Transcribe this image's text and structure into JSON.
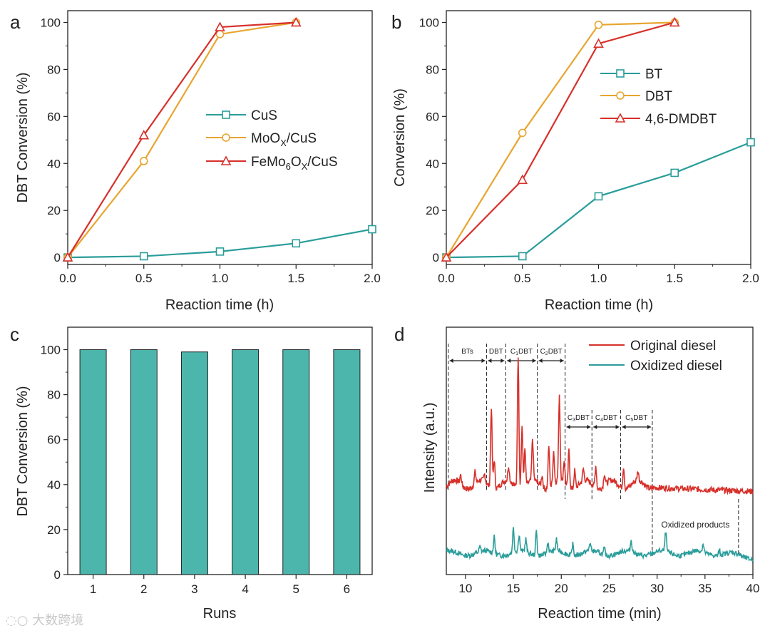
{
  "watermark": "大数跨境",
  "chart_data": [
    {
      "panel": "a",
      "type": "line",
      "title": "",
      "xlabel": "Reaction time (h)",
      "ylabel": "DBT Conversion (%)",
      "xlim": [
        0,
        2.0
      ],
      "ylim": [
        -3,
        105
      ],
      "xticks": [
        0.0,
        0.5,
        1.0,
        1.5,
        2.0
      ],
      "xtick_labels": [
        "0.0",
        "0.5",
        "1.0",
        "1.5",
        "2.0"
      ],
      "yticks": [
        0,
        20,
        40,
        60,
        80,
        100
      ],
      "ytick_labels": [
        "0",
        "20",
        "40",
        "60",
        "80",
        "100"
      ],
      "legend_position": "center-right",
      "series": [
        {
          "name": "CuS",
          "marker": "square",
          "color": "#2a9d9a",
          "x": [
            0,
            0.5,
            1.0,
            1.5,
            2.0
          ],
          "y": [
            0,
            0.5,
            2.5,
            6,
            12
          ]
        },
        {
          "name": "MoOX/CuS",
          "legend_base": "MoO",
          "legend_sub": "X",
          "legend_tail": "/CuS",
          "marker": "circle",
          "color": "#e8a530",
          "x": [
            0,
            0.5,
            1.0,
            1.5
          ],
          "y": [
            0,
            41,
            95,
            100
          ]
        },
        {
          "name": "FeMo6OX/CuS",
          "legend_base": "FeMo",
          "legend_sub": "6",
          "legend_mid": "O",
          "legend_sub2": "X",
          "legend_tail": "/CuS",
          "marker": "triangle",
          "color": "#d7302a",
          "x": [
            0,
            0.5,
            1.0,
            1.5
          ],
          "y": [
            0,
            52,
            98,
            100
          ]
        }
      ]
    },
    {
      "panel": "b",
      "type": "line",
      "xlabel": "Reaction time (h)",
      "ylabel": "Conversion (%)",
      "xlim": [
        0,
        2.0
      ],
      "ylim": [
        -3,
        105
      ],
      "xticks": [
        0.0,
        0.5,
        1.0,
        1.5,
        2.0
      ],
      "xtick_labels": [
        "0.0",
        "0.5",
        "1.0",
        "1.5",
        "2.0"
      ],
      "yticks": [
        0,
        20,
        40,
        60,
        80,
        100
      ],
      "ytick_labels": [
        "0",
        "20",
        "40",
        "60",
        "80",
        "100"
      ],
      "legend_position": "center-right",
      "series": [
        {
          "name": "BT",
          "marker": "square",
          "color": "#2a9d9a",
          "x": [
            0,
            0.5,
            1.0,
            1.5,
            2.0
          ],
          "y": [
            0,
            0.5,
            26,
            36,
            49
          ]
        },
        {
          "name": "DBT",
          "marker": "circle",
          "color": "#e8a530",
          "x": [
            0,
            0.5,
            1.0,
            1.5
          ],
          "y": [
            0,
            53,
            99,
            100
          ]
        },
        {
          "name": "4,6-DMDBT",
          "marker": "triangle",
          "color": "#d7302a",
          "x": [
            0,
            0.5,
            1.0,
            1.5
          ],
          "y": [
            0,
            33,
            91,
            100
          ]
        }
      ]
    },
    {
      "panel": "c",
      "type": "bar",
      "xlabel": "Runs",
      "ylabel": "DBT Conversion (%)",
      "categories": [
        "1",
        "2",
        "3",
        "4",
        "5",
        "6"
      ],
      "values": [
        100,
        100,
        99,
        100,
        100,
        100
      ],
      "ylim": [
        0,
        110
      ],
      "yticks": [
        0,
        20,
        40,
        60,
        80,
        100
      ],
      "ytick_labels": [
        "0",
        "20",
        "40",
        "60",
        "80",
        "100"
      ],
      "bar_color": "#4db6ac"
    },
    {
      "panel": "d",
      "type": "line",
      "xlabel": "Reaction time (min)",
      "ylabel": "Intensity (a.u.)",
      "xlim": [
        8,
        40
      ],
      "xticks": [
        10,
        15,
        20,
        25,
        30,
        35,
        40
      ],
      "xtick_labels": [
        "10",
        "15",
        "20",
        "25",
        "30",
        "35",
        "40"
      ],
      "legend_position": "top-right",
      "series": [
        {
          "name": "Original diesel",
          "color": "#d7302a"
        },
        {
          "name": "Oxidized diesel",
          "color": "#2a9d9a"
        }
      ],
      "peaks_original": [
        [
          9.5,
          6
        ],
        [
          11.0,
          8
        ],
        [
          12.0,
          5
        ],
        [
          12.7,
          55
        ],
        [
          13.0,
          20
        ],
        [
          14.5,
          10
        ],
        [
          15.5,
          90
        ],
        [
          15.9,
          42
        ],
        [
          16.2,
          25
        ],
        [
          17.0,
          28
        ],
        [
          18.0,
          8
        ],
        [
          18.7,
          28
        ],
        [
          19.2,
          22
        ],
        [
          19.8,
          58
        ],
        [
          20.3,
          15
        ],
        [
          20.8,
          25
        ],
        [
          21.4,
          12
        ],
        [
          22.3,
          8
        ],
        [
          23.6,
          15
        ],
        [
          24.5,
          8
        ],
        [
          26.5,
          15
        ],
        [
          28.0,
          6
        ]
      ],
      "peaks_oxidized": [
        [
          11.5,
          3
        ],
        [
          13.0,
          10
        ],
        [
          15.0,
          15
        ],
        [
          15.6,
          10
        ],
        [
          16.3,
          8
        ],
        [
          17.4,
          15
        ],
        [
          18.6,
          6
        ],
        [
          19.5,
          7
        ],
        [
          21.2,
          7
        ],
        [
          23.0,
          5
        ],
        [
          24.5,
          4
        ],
        [
          27.3,
          7
        ],
        [
          30.9,
          12
        ],
        [
          34.8,
          5
        ],
        [
          36.5,
          3
        ]
      ],
      "regions": [
        {
          "label": "BTs",
          "x1": 8.2,
          "x2": 12.2
        },
        {
          "label": "DBT",
          "x1": 12.2,
          "x2": 14.2
        },
        {
          "label": "C1DBT",
          "base": "C",
          "sub": "1",
          "tail": "DBT",
          "x1": 14.2,
          "x2": 17.5
        },
        {
          "label": "C2DBT",
          "base": "C",
          "sub": "2",
          "tail": "DBT",
          "x1": 17.5,
          "x2": 20.4
        },
        {
          "label": "C3DBT",
          "base": "C",
          "sub": "3",
          "tail": "DBT",
          "x1": 20.4,
          "x2": 23.2
        },
        {
          "label": "C4DBT",
          "base": "C",
          "sub": "4",
          "tail": "DBT",
          "x1": 23.2,
          "x2": 26.2
        },
        {
          "label": "C5DBT",
          "base": "C",
          "sub": "5",
          "tail": "DBT",
          "x1": 26.2,
          "x2": 29.5
        }
      ],
      "annotation": "Oxidized products",
      "annotation_range": [
        29.5,
        38.5
      ]
    }
  ]
}
